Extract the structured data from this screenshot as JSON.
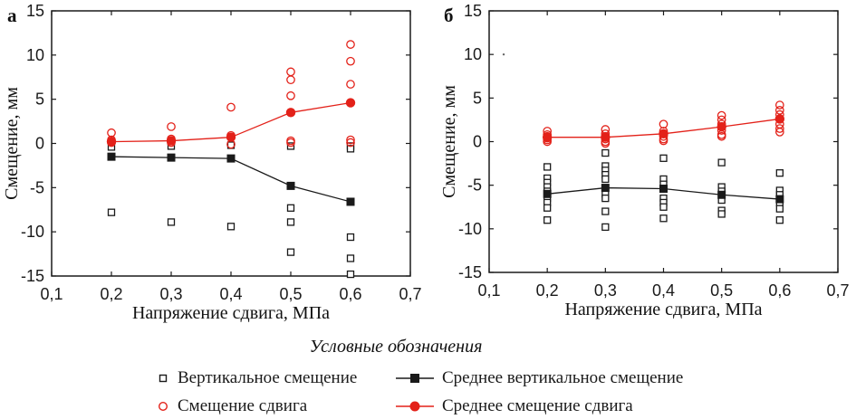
{
  "figure": {
    "background": "#ffffff",
    "accent_red": "#e32119",
    "accent_black": "#1a1a1a"
  },
  "legend": {
    "title": "Условные обозначения",
    "items": [
      {
        "id": "vertical-scatter",
        "label": "Вертикальное смещение",
        "marker": "open-square",
        "color": "#1a1a1a"
      },
      {
        "id": "mean-vertical",
        "label": "Среднее вертикальное смещение",
        "marker": "line-filled-square",
        "color": "#1a1a1a"
      },
      {
        "id": "shear-scatter",
        "label": "Смещение сдвига",
        "marker": "open-circle",
        "color": "#e32119"
      },
      {
        "id": "mean-shear",
        "label": "Среднее смещение сдвига",
        "marker": "line-filled-circle",
        "color": "#e32119"
      }
    ]
  },
  "chart_data": [
    {
      "id": "a",
      "panel_label": "а",
      "type": "scatter",
      "xlabel": "Напряжение сдвига, МПа",
      "ylabel": "Смещение, мм",
      "xlim": [
        0.1,
        0.7
      ],
      "ylim": [
        -15,
        15
      ],
      "xticks": [
        0.1,
        0.2,
        0.3,
        0.4,
        0.5,
        0.6,
        0.7
      ],
      "xtick_labels": [
        "0,1",
        "0,2",
        "0,3",
        "0,4",
        "0,5",
        "0,6",
        "0,7"
      ],
      "yticks": [
        -15,
        -10,
        -5,
        0,
        5,
        10,
        15
      ],
      "grid": false,
      "x": [
        0.2,
        0.3,
        0.4,
        0.5,
        0.6
      ],
      "series": [
        {
          "name": "Вертикальное смещение",
          "kind": "scatter",
          "marker": "open-square",
          "color": "#1a1a1a",
          "groups": [
            {
              "x": 0.2,
              "y": [
                -0.4,
                -7.8
              ]
            },
            {
              "x": 0.3,
              "y": [
                -0.3,
                -8.9
              ]
            },
            {
              "x": 0.4,
              "y": [
                -0.2,
                -9.4
              ]
            },
            {
              "x": 0.5,
              "y": [
                -0.3,
                -7.3,
                -8.9,
                -12.3
              ]
            },
            {
              "x": 0.6,
              "y": [
                -0.3,
                -0.6,
                -10.6,
                -13.0,
                -14.8
              ]
            }
          ]
        },
        {
          "name": "Смещение сдвига",
          "kind": "scatter",
          "marker": "open-circle",
          "color": "#e32119",
          "groups": [
            {
              "x": 0.2,
              "y": [
                1.2,
                0.4,
                0.1
              ]
            },
            {
              "x": 0.3,
              "y": [
                1.9,
                0.5,
                0.1
              ]
            },
            {
              "x": 0.4,
              "y": [
                4.1,
                0.9,
                -0.1
              ]
            },
            {
              "x": 0.5,
              "y": [
                8.1,
                7.2,
                5.4,
                0.3,
                0.1
              ]
            },
            {
              "x": 0.6,
              "y": [
                11.2,
                9.3,
                6.7,
                0.4,
                0.1
              ]
            }
          ]
        },
        {
          "name": "Среднее вертикальное смещение",
          "kind": "line",
          "marker": "filled-square",
          "color": "#1a1a1a",
          "y": [
            -1.5,
            -1.6,
            -1.7,
            -4.8,
            -6.6
          ]
        },
        {
          "name": "Среднее смещение сдвига",
          "kind": "line",
          "marker": "filled-circle",
          "color": "#e32119",
          "y": [
            0.2,
            0.3,
            0.7,
            3.5,
            4.6
          ]
        }
      ]
    },
    {
      "id": "b",
      "panel_label": "б",
      "type": "scatter",
      "xlabel": "Напряжение сдвига, МПа",
      "ylabel": "Смещение, мм",
      "xlim": [
        0.1,
        0.7
      ],
      "ylim": [
        -15,
        15
      ],
      "xticks": [
        0.1,
        0.2,
        0.3,
        0.4,
        0.5,
        0.6,
        0.7
      ],
      "xtick_labels": [
        "0,1",
        "0,2",
        "0,3",
        "0,4",
        "0,5",
        "0,6",
        "0,7"
      ],
      "yticks": [
        -15,
        -10,
        -5,
        0,
        5,
        10,
        15
      ],
      "grid": false,
      "stray_dot": {
        "x": 0.125,
        "y": 10
      },
      "x": [
        0.2,
        0.3,
        0.4,
        0.5,
        0.6
      ],
      "series": [
        {
          "name": "Вертикальное смещение",
          "kind": "scatter",
          "marker": "open-square",
          "color": "#1a1a1a",
          "groups": [
            {
              "x": 0.2,
              "y": [
                -2.9,
                -4.2,
                -4.7,
                -5.2,
                -5.7,
                -6.5,
                -7.0,
                -7.6,
                -9.0
              ]
            },
            {
              "x": 0.3,
              "y": [
                -1.3,
                -2.8,
                -3.3,
                -3.8,
                -4.3,
                -6.0,
                -6.5,
                -8.0,
                -9.8
              ]
            },
            {
              "x": 0.4,
              "y": [
                -1.9,
                -4.3,
                -4.9,
                -6.5,
                -7.0,
                -7.5,
                -8.8
              ]
            },
            {
              "x": 0.5,
              "y": [
                -2.4,
                -5.2,
                -5.7,
                -6.7,
                -7.9,
                -8.3
              ]
            },
            {
              "x": 0.6,
              "y": [
                -3.6,
                -5.6,
                -6.1,
                -7.0,
                -7.7,
                -9.0
              ]
            }
          ]
        },
        {
          "name": "Смещение сдвига",
          "kind": "scatter",
          "marker": "open-circle",
          "color": "#e32119",
          "groups": [
            {
              "x": 0.2,
              "y": [
                1.2,
                0.8,
                0.6,
                0.4,
                0.2,
                0.0
              ]
            },
            {
              "x": 0.3,
              "y": [
                1.4,
                0.9,
                0.6,
                0.3,
                0.0,
                -0.2
              ]
            },
            {
              "x": 0.4,
              "y": [
                2.0,
                1.2,
                0.9,
                0.6,
                0.3,
                0.1
              ]
            },
            {
              "x": 0.5,
              "y": [
                3.0,
                2.5,
                2.0,
                1.3,
                0.8,
                0.6
              ]
            },
            {
              "x": 0.6,
              "y": [
                4.2,
                3.6,
                3.1,
                2.6,
                2.0,
                1.5,
                1.1
              ]
            }
          ]
        },
        {
          "name": "Среднее вертикальное смещение",
          "kind": "line",
          "marker": "filled-square",
          "color": "#1a1a1a",
          "y": [
            -6.0,
            -5.3,
            -5.4,
            -6.1,
            -6.6
          ]
        },
        {
          "name": "Среднее смещение сдвига",
          "kind": "line",
          "marker": "filled-circle",
          "color": "#e32119",
          "y": [
            0.5,
            0.5,
            0.9,
            1.7,
            2.6
          ]
        }
      ]
    }
  ]
}
